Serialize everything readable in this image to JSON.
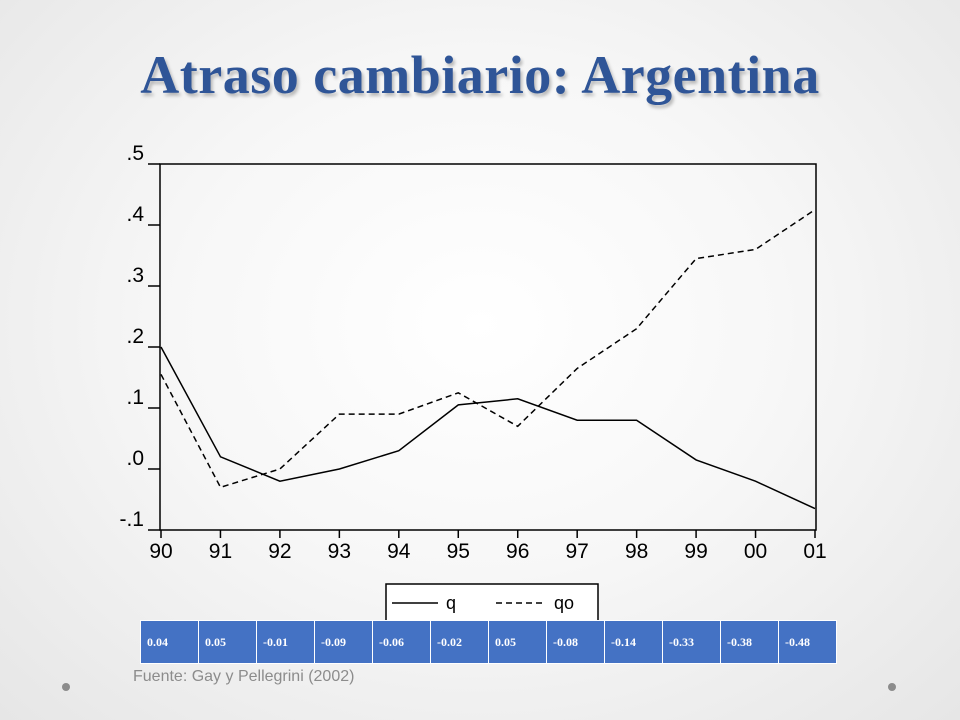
{
  "slide": {
    "title": "Atraso cambiario: Argentina",
    "source": "Fuente: Gay y Pellegrini (2002)"
  },
  "chart_data": {
    "type": "line",
    "x": [
      "90",
      "91",
      "92",
      "93",
      "94",
      "95",
      "96",
      "97",
      "98",
      "99",
      "00",
      "01"
    ],
    "y_tick_labels": [
      ".5",
      ".4",
      ".3",
      ".2",
      ".1",
      ".0",
      "-.1"
    ],
    "ylim": [
      -0.1,
      0.5
    ],
    "grid": false,
    "legend_position": "bottom",
    "series": [
      {
        "name": "q",
        "style": "solid",
        "values": [
          0.2,
          0.02,
          -0.02,
          0.0,
          0.03,
          0.105,
          0.115,
          0.08,
          0.08,
          0.015,
          -0.02,
          -0.065
        ]
      },
      {
        "name": "qo",
        "style": "dashed",
        "values": [
          0.155,
          -0.03,
          0.0,
          0.09,
          0.09,
          0.125,
          0.07,
          0.165,
          0.23,
          0.345,
          0.36,
          0.425
        ]
      }
    ]
  },
  "table": {
    "values": [
      "0.04",
      "0.05",
      "-0.01",
      "-0.09",
      "-0.06",
      "-0.02",
      "0.05",
      "-0.08",
      "-0.14",
      "-0.33",
      "-0.38",
      "-0.48"
    ]
  },
  "colors": {
    "title": "#2f5597",
    "table_fill": "#4472c4",
    "line": "#000000"
  }
}
